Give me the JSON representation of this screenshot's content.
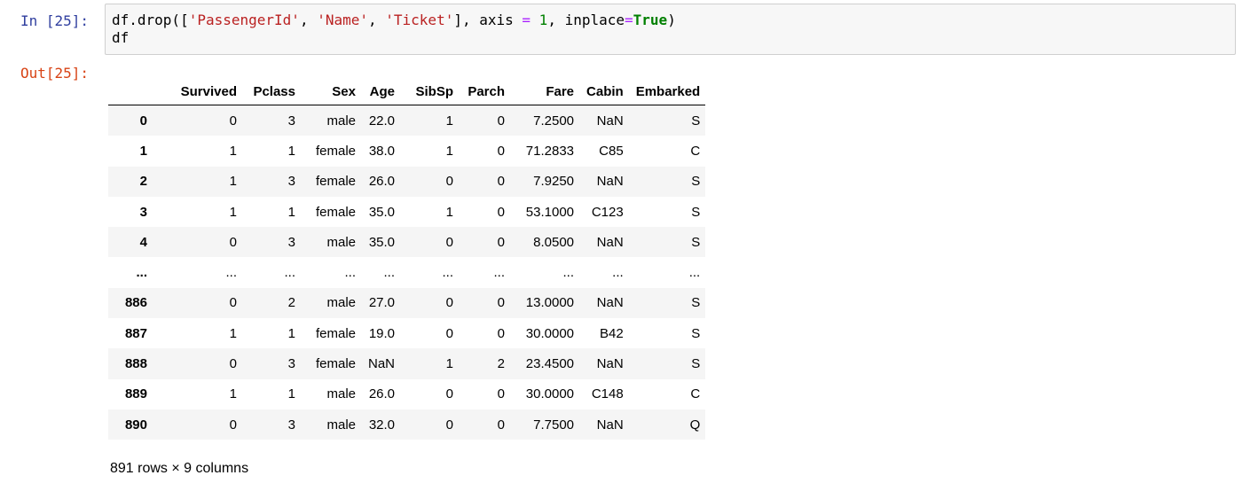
{
  "input_prompt": "In [25]:",
  "output_prompt": "Out[25]:",
  "code": {
    "line1": {
      "p1": "df.drop([",
      "s1": "'PassengerId'",
      "p2": ", ",
      "s2": "'Name'",
      "p3": ", ",
      "s3": "'Ticket'",
      "p4": "], axis ",
      "op1": "=",
      "p5": " ",
      "n1": "1",
      "p6": ", inplace",
      "op2": "=",
      "kw1": "True",
      "p7": ")"
    },
    "line2": "df"
  },
  "table": {
    "columns": [
      "",
      "Survived",
      "Pclass",
      "Sex",
      "Age",
      "SibSp",
      "Parch",
      "Fare",
      "Cabin",
      "Embarked"
    ],
    "rows": [
      [
        "0",
        "0",
        "3",
        "male",
        "22.0",
        "1",
        "0",
        "7.2500",
        "NaN",
        "S"
      ],
      [
        "1",
        "1",
        "1",
        "female",
        "38.0",
        "1",
        "0",
        "71.2833",
        "C85",
        "C"
      ],
      [
        "2",
        "1",
        "3",
        "female",
        "26.0",
        "0",
        "0",
        "7.9250",
        "NaN",
        "S"
      ],
      [
        "3",
        "1",
        "1",
        "female",
        "35.0",
        "1",
        "0",
        "53.1000",
        "C123",
        "S"
      ],
      [
        "4",
        "0",
        "3",
        "male",
        "35.0",
        "0",
        "0",
        "8.0500",
        "NaN",
        "S"
      ],
      [
        "...",
        "...",
        "...",
        "...",
        "...",
        "...",
        "...",
        "...",
        "...",
        "..."
      ],
      [
        "886",
        "0",
        "2",
        "male",
        "27.0",
        "0",
        "0",
        "13.0000",
        "NaN",
        "S"
      ],
      [
        "887",
        "1",
        "1",
        "female",
        "19.0",
        "0",
        "0",
        "30.0000",
        "B42",
        "S"
      ],
      [
        "888",
        "0",
        "3",
        "female",
        "NaN",
        "1",
        "2",
        "23.4500",
        "NaN",
        "S"
      ],
      [
        "889",
        "1",
        "1",
        "male",
        "26.0",
        "0",
        "0",
        "30.0000",
        "C148",
        "C"
      ],
      [
        "890",
        "0",
        "3",
        "male",
        "32.0",
        "0",
        "0",
        "7.7500",
        "NaN",
        "Q"
      ]
    ]
  },
  "shape_note": "891 rows × 9 columns"
}
